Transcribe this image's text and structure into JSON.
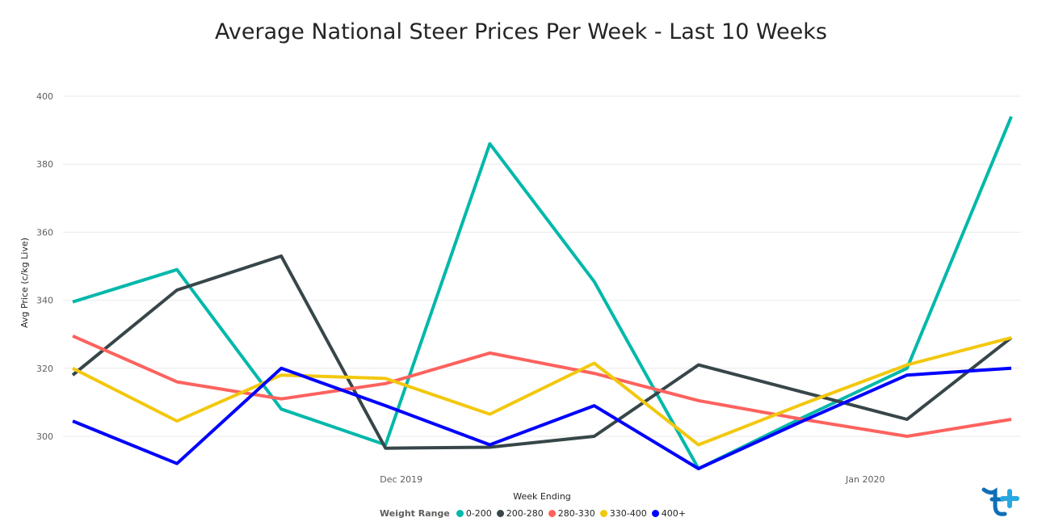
{
  "chart_data": {
    "type": "line",
    "title": "Average National Steer Prices Per Week - Last 10 Weeks",
    "xlabel": "Week Ending",
    "ylabel": "Avg Price (c/kg Live)",
    "ylim": [
      290,
      405
    ],
    "yticks": [
      300,
      320,
      340,
      360,
      380,
      400
    ],
    "x": [
      0,
      1,
      2,
      3,
      4,
      5,
      6,
      7,
      8,
      9
    ],
    "x_tick_labels": [
      {
        "label": "Dec 2019",
        "at": 3.15
      },
      {
        "label": "Jan 2020",
        "at": 7.6
      }
    ],
    "grid": true,
    "legend_title": "Weight Range",
    "legend_position": "bottom",
    "series": [
      {
        "name": "0-200",
        "color": "#01b8aa",
        "values": [
          339.5,
          349,
          308,
          297.5,
          386,
          345.5,
          290.5,
          305.5,
          320,
          394
        ]
      },
      {
        "name": "200-280",
        "color": "#374649",
        "values": [
          318,
          343,
          353,
          296.5,
          296.8,
          300,
          321,
          313,
          305,
          329
        ]
      },
      {
        "name": "280-330",
        "color": "#fd625e",
        "values": [
          329.5,
          316,
          311,
          315.5,
          324.5,
          318.5,
          310.5,
          305,
          300,
          305
        ]
      },
      {
        "name": "330-400",
        "color": "#f2c80f",
        "values": [
          320,
          304.5,
          318,
          317,
          306.5,
          321.5,
          297.5,
          309.5,
          321,
          329
        ]
      },
      {
        "name": "400+",
        "color": "#0000ff",
        "values": [
          304.5,
          292,
          320,
          309,
          297.5,
          309,
          290.5,
          304.5,
          318,
          320
        ]
      }
    ]
  }
}
